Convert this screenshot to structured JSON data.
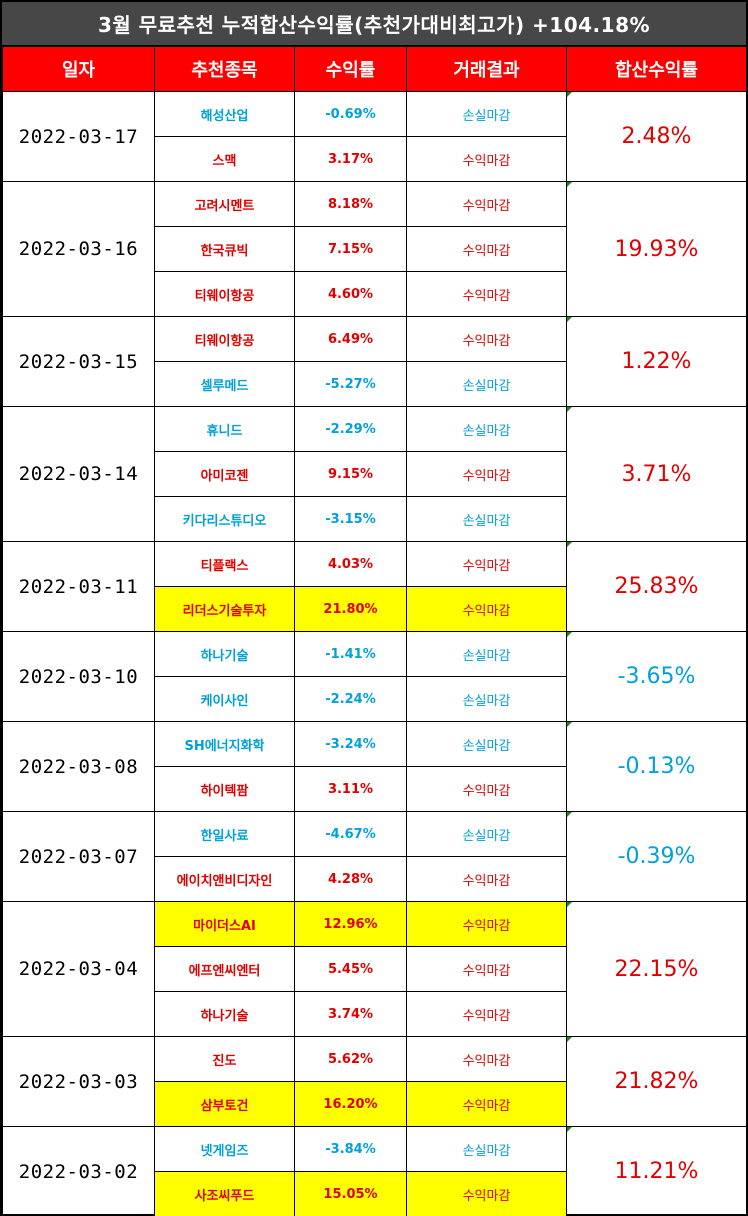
{
  "title": "3월 무료추천 누적합산수익률(추천가대비최고가) +104.18%",
  "headers": [
    "일자",
    "추천종목",
    "수익률",
    "거래결과",
    "합산수익률"
  ],
  "colors": {
    "positive": "#e00000",
    "negative": "#00a0d8",
    "highlight": "#ffff00",
    "header": "#ff0000",
    "title_bar": "#474747"
  },
  "groups": [
    {
      "date": "2022-03-17",
      "total": "2.48%",
      "total_sign": "pos",
      "rows": [
        {
          "stock": "해성산업",
          "rate": "-0.69%",
          "result": "손실마감",
          "sign": "neg",
          "highlight": false
        },
        {
          "stock": "스맥",
          "rate": "3.17%",
          "result": "수익마감",
          "sign": "pos",
          "highlight": false
        }
      ]
    },
    {
      "date": "2022-03-16",
      "total": "19.93%",
      "total_sign": "pos",
      "rows": [
        {
          "stock": "고려시멘트",
          "rate": "8.18%",
          "result": "수익마감",
          "sign": "pos",
          "highlight": false
        },
        {
          "stock": "한국큐빅",
          "rate": "7.15%",
          "result": "수익마감",
          "sign": "pos",
          "highlight": false
        },
        {
          "stock": "티웨이항공",
          "rate": "4.60%",
          "result": "수익마감",
          "sign": "pos",
          "highlight": false
        }
      ]
    },
    {
      "date": "2022-03-15",
      "total": "1.22%",
      "total_sign": "pos",
      "rows": [
        {
          "stock": "티웨이항공",
          "rate": "6.49%",
          "result": "수익마감",
          "sign": "pos",
          "highlight": false
        },
        {
          "stock": "셀루메드",
          "rate": "-5.27%",
          "result": "손실마감",
          "sign": "neg",
          "highlight": false
        }
      ]
    },
    {
      "date": "2022-03-14",
      "total": "3.71%",
      "total_sign": "pos",
      "rows": [
        {
          "stock": "휴니드",
          "rate": "-2.29%",
          "result": "손실마감",
          "sign": "neg",
          "highlight": false
        },
        {
          "stock": "아미코젠",
          "rate": "9.15%",
          "result": "수익마감",
          "sign": "pos",
          "highlight": false
        },
        {
          "stock": "키다리스튜디오",
          "rate": "-3.15%",
          "result": "손실마감",
          "sign": "neg",
          "highlight": false
        }
      ]
    },
    {
      "date": "2022-03-11",
      "total": "25.83%",
      "total_sign": "pos",
      "rows": [
        {
          "stock": "티플랙스",
          "rate": "4.03%",
          "result": "수익마감",
          "sign": "pos",
          "highlight": false
        },
        {
          "stock": "리더스기술투자",
          "rate": "21.80%",
          "result": "수익마감",
          "sign": "pos",
          "highlight": true
        }
      ]
    },
    {
      "date": "2022-03-10",
      "total": "-3.65%",
      "total_sign": "neg",
      "rows": [
        {
          "stock": "하나기술",
          "rate": "-1.41%",
          "result": "손실마감",
          "sign": "neg",
          "highlight": false
        },
        {
          "stock": "케이사인",
          "rate": "-2.24%",
          "result": "손실마감",
          "sign": "neg",
          "highlight": false
        }
      ]
    },
    {
      "date": "2022-03-08",
      "total": "-0.13%",
      "total_sign": "neg",
      "rows": [
        {
          "stock": "SH에너지화학",
          "rate": "-3.24%",
          "result": "손실마감",
          "sign": "neg",
          "highlight": false
        },
        {
          "stock": "하이텍팜",
          "rate": "3.11%",
          "result": "수익마감",
          "sign": "pos",
          "highlight": false
        }
      ]
    },
    {
      "date": "2022-03-07",
      "total": "-0.39%",
      "total_sign": "neg",
      "rows": [
        {
          "stock": "한일사료",
          "rate": "-4.67%",
          "result": "손실마감",
          "sign": "neg",
          "highlight": false
        },
        {
          "stock": "에이치앤비디자인",
          "rate": "4.28%",
          "result": "수익마감",
          "sign": "pos",
          "highlight": false
        }
      ]
    },
    {
      "date": "2022-03-04",
      "total": "22.15%",
      "total_sign": "pos",
      "rows": [
        {
          "stock": "마이더스AI",
          "rate": "12.96%",
          "result": "수익마감",
          "sign": "pos",
          "highlight": true
        },
        {
          "stock": "에프엔씨엔터",
          "rate": "5.45%",
          "result": "수익마감",
          "sign": "pos",
          "highlight": false
        },
        {
          "stock": "하나기술",
          "rate": "3.74%",
          "result": "수익마감",
          "sign": "pos",
          "highlight": false
        }
      ]
    },
    {
      "date": "2022-03-03",
      "total": "21.82%",
      "total_sign": "pos",
      "rows": [
        {
          "stock": "진도",
          "rate": "5.62%",
          "result": "수익마감",
          "sign": "pos",
          "highlight": false
        },
        {
          "stock": "삼부토건",
          "rate": "16.20%",
          "result": "수익마감",
          "sign": "pos",
          "highlight": true
        }
      ]
    },
    {
      "date": "2022-03-02",
      "total": "11.21%",
      "total_sign": "pos",
      "rows": [
        {
          "stock": "넷게임즈",
          "rate": "-3.84%",
          "result": "손실마감",
          "sign": "neg",
          "highlight": false
        },
        {
          "stock": "사조씨푸드",
          "rate": "15.05%",
          "result": "수익마감",
          "sign": "pos",
          "highlight": true
        }
      ]
    }
  ]
}
